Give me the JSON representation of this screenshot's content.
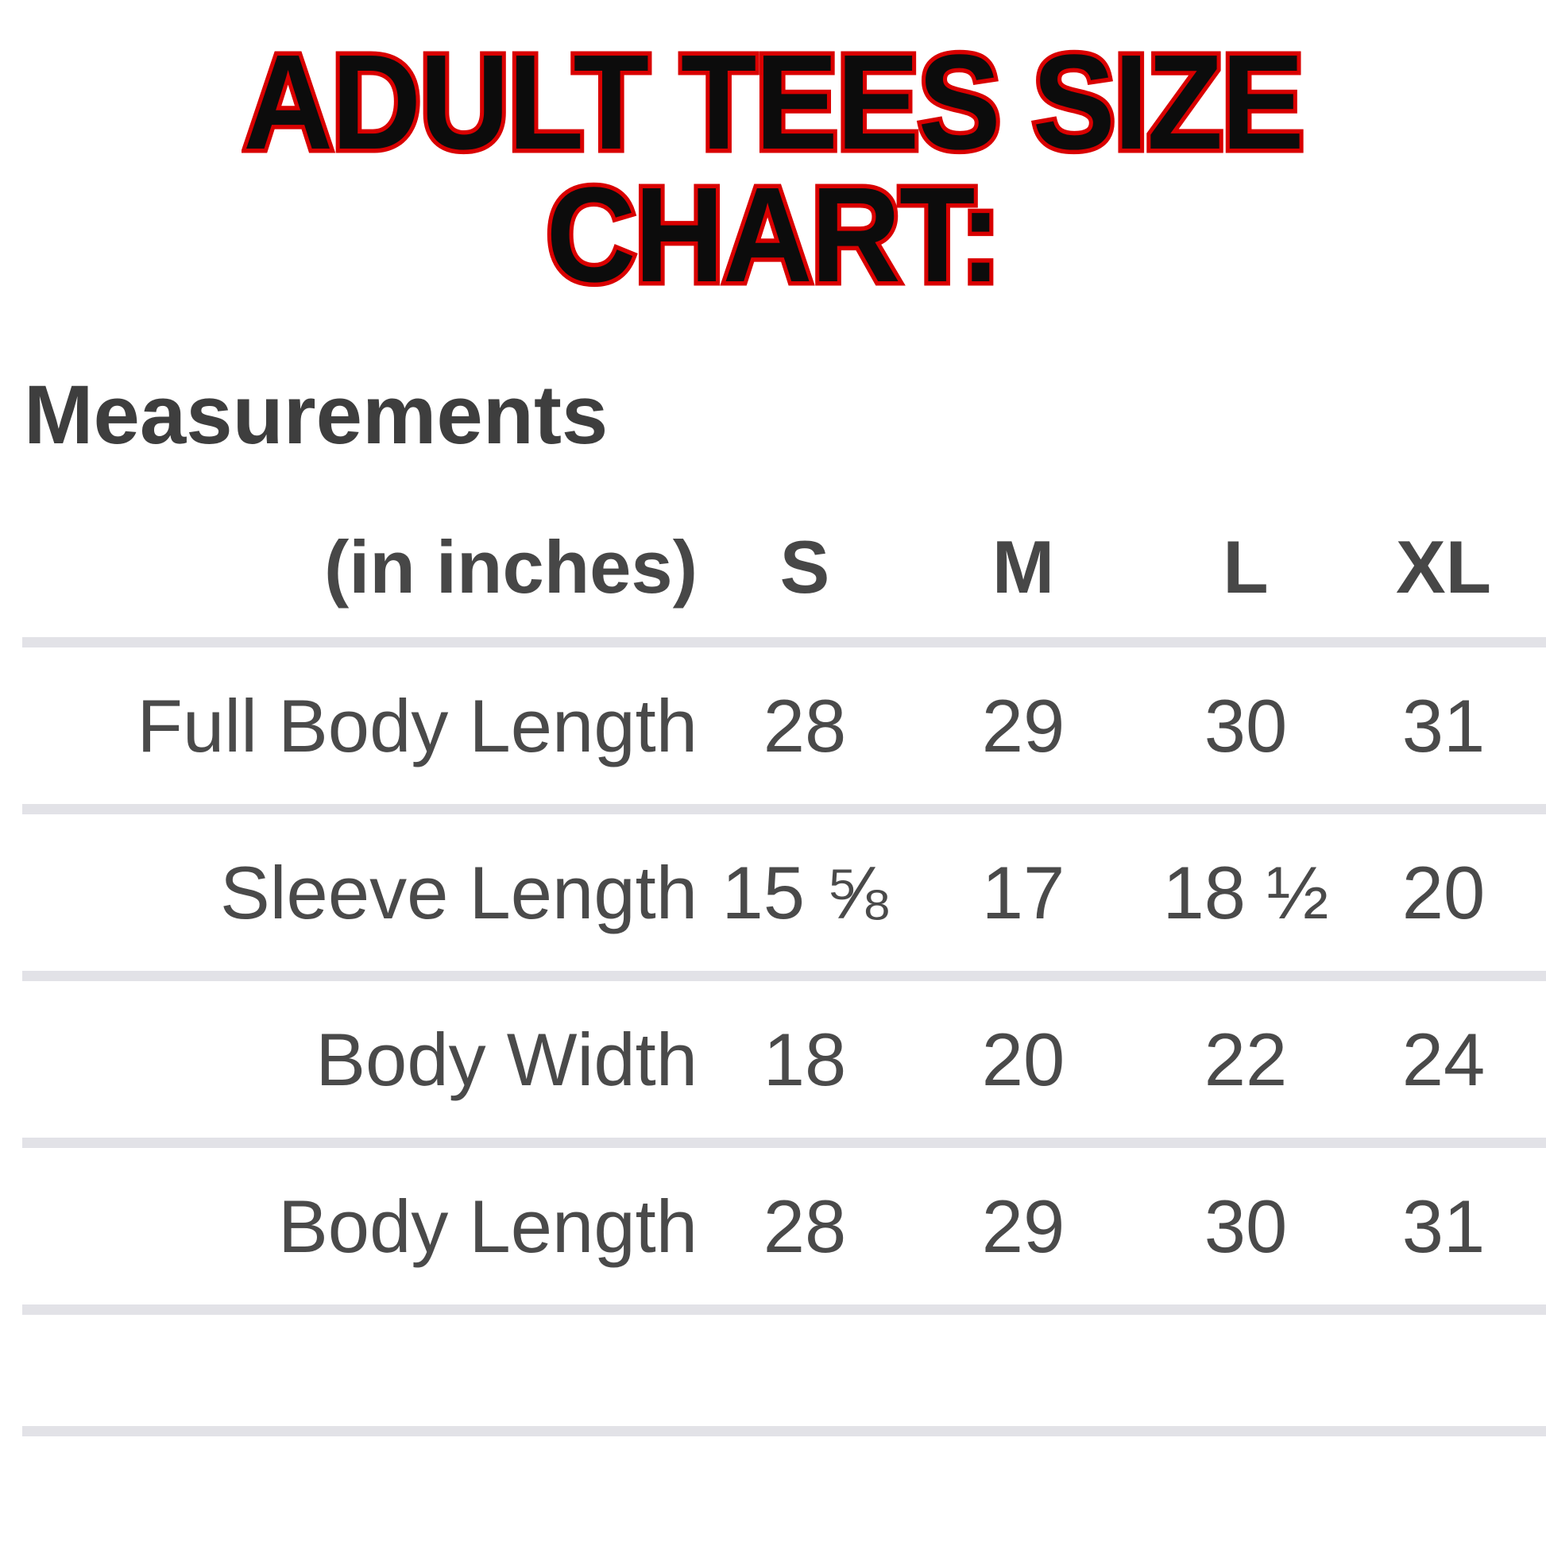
{
  "title": {
    "line1": "ADULT TEES SIZE",
    "line2": "CHART:"
  },
  "section_heading": "Measurements",
  "table": {
    "unit_label": "(in inches)",
    "columns": [
      "S",
      "M",
      "L",
      "XL"
    ],
    "rows": [
      {
        "label": "Full Body Length",
        "values": [
          "28",
          "29",
          "30",
          "31"
        ]
      },
      {
        "label": "Sleeve Length",
        "values": [
          "15 ⅝",
          "17",
          "18 ½",
          "20"
        ]
      },
      {
        "label": "Body Width",
        "values": [
          "18",
          "20",
          "22",
          "24"
        ]
      },
      {
        "label": "Body Length",
        "values": [
          "28",
          "29",
          "30",
          "31"
        ]
      }
    ]
  },
  "colors": {
    "background": "#ffffff",
    "title_fill": "#0c0c0c",
    "title_outline": "#d90000",
    "heading_text": "#3e3e3e",
    "table_text": "#4a4a4a",
    "divider": "#e2e2e7"
  },
  "chart_data": {
    "type": "table",
    "title": "ADULT TEES SIZE CHART:",
    "subtitle": "Measurements",
    "columns": [
      "(in inches)",
      "S",
      "M",
      "L",
      "XL"
    ],
    "rows": [
      [
        "Full Body Length",
        "28",
        "29",
        "30",
        "31"
      ],
      [
        "Sleeve Length",
        "15 ⅝",
        "17",
        "18 ½",
        "20"
      ],
      [
        "Body Width",
        "18",
        "20",
        "22",
        "24"
      ],
      [
        "Body Length",
        "28",
        "29",
        "30",
        "31"
      ]
    ]
  }
}
